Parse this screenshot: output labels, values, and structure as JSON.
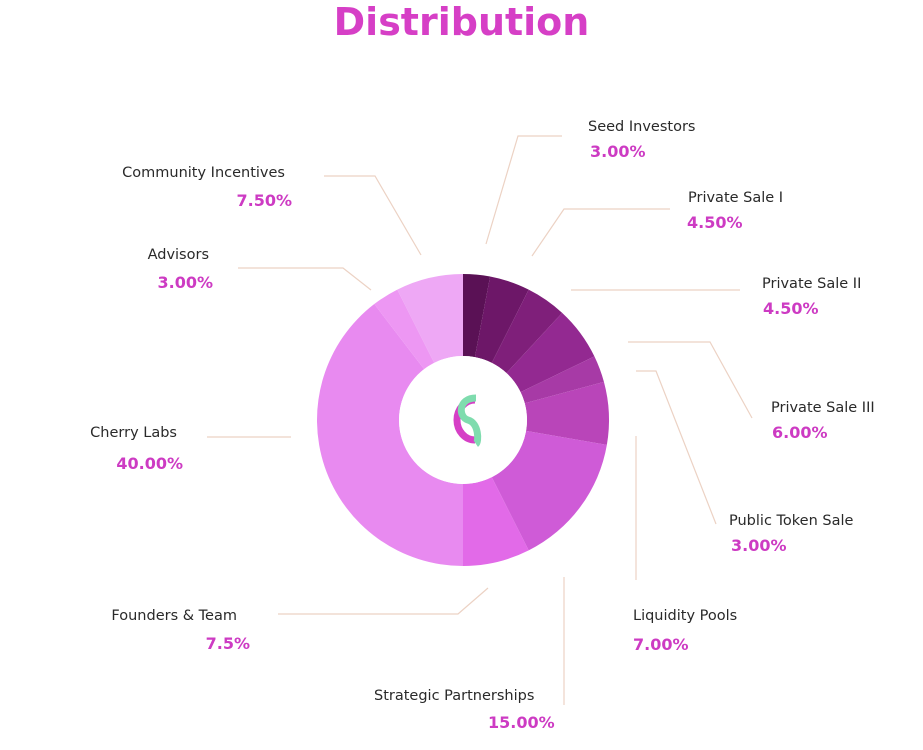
{
  "title": "Distribution",
  "colors": {
    "title": "#d63fc6",
    "percent_text": "#cd3bc3",
    "leader_line": "#ecd2c4",
    "center_bg": "#ffffff",
    "logo_pink": "#d63fc6",
    "logo_green": "#7fdcae"
  },
  "logo": {
    "icon": "cherry-logo-icon"
  },
  "chart_data": {
    "type": "pie",
    "subtype": "donut",
    "title": "Distribution",
    "legend": "none",
    "slices": [
      {
        "label": "Seed Investors",
        "value": 3.0,
        "value_label": "3.00%",
        "color": "#5a1155"
      },
      {
        "label": "Private Sale I",
        "value": 4.5,
        "value_label": "4.50%",
        "color": "#6d1768"
      },
      {
        "label": "Private Sale II",
        "value": 4.5,
        "value_label": "4.50%",
        "color": "#7f1f7a"
      },
      {
        "label": "Private Sale III",
        "value": 6.0,
        "value_label": "6.00%",
        "color": "#932991"
      },
      {
        "label": "Public Token Sale",
        "value": 3.0,
        "value_label": "3.00%",
        "color": "#a73aa6"
      },
      {
        "label": "Liquidity Pools",
        "value": 7.0,
        "value_label": "7.00%",
        "color": "#b945b9"
      },
      {
        "label": "Strategic Partnerships",
        "value": 15.0,
        "value_label": "15.00%",
        "color": "#cf5bd7"
      },
      {
        "label": "Founders & Team",
        "value": 7.5,
        "value_label": "7.5%",
        "color": "#e26ae8"
      },
      {
        "label": "Cherry Labs",
        "value": 40.0,
        "value_label": "40.00%",
        "color": "#e88af0"
      },
      {
        "label": "Advisors",
        "value": 3.0,
        "value_label": "3.00%",
        "color": "#ed97f3"
      },
      {
        "label": "Community Incentives",
        "value": 7.5,
        "value_label": "7.50%",
        "color": "#eea8f5"
      }
    ]
  }
}
